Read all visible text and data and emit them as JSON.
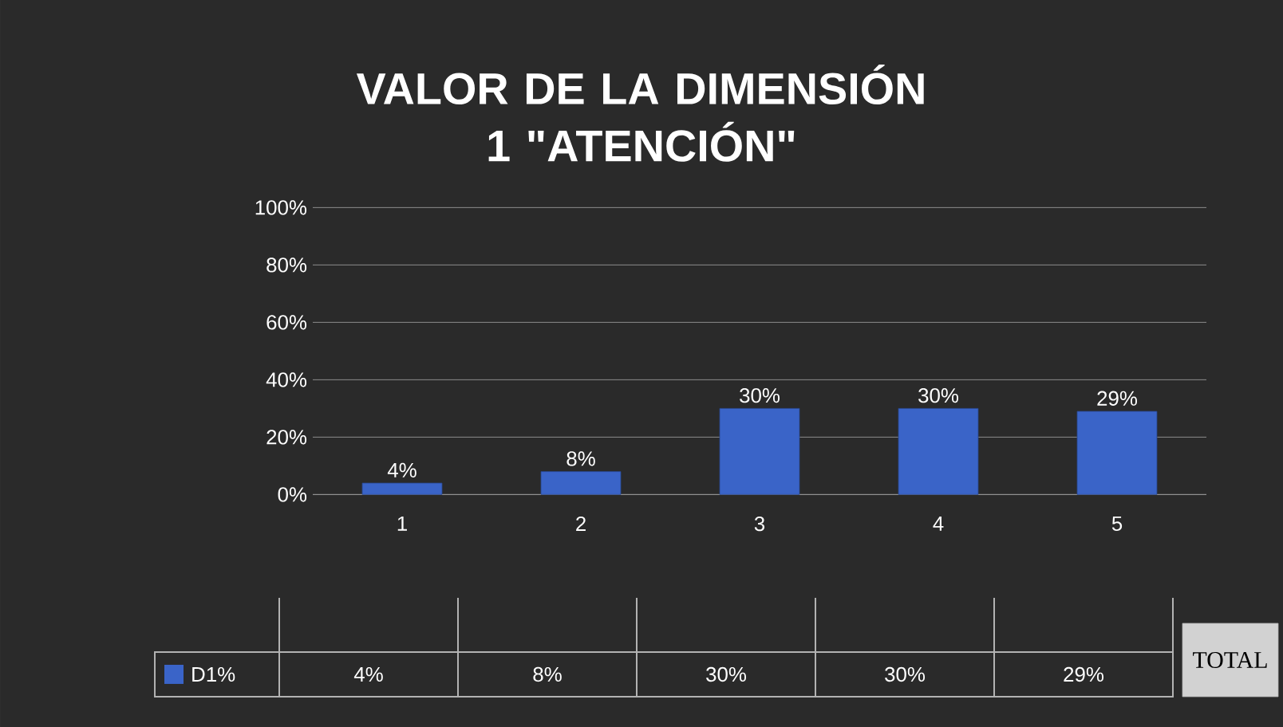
{
  "chart_data": {
    "type": "bar",
    "title": "VALOR DE LA DIMENSIÓN 1 \"ATENCIÓN\"",
    "categories": [
      "1",
      "2",
      "3",
      "4",
      "5"
    ],
    "series": [
      {
        "name": "D1%",
        "color": "#3a64c8",
        "values": [
          4,
          8,
          30,
          30,
          29
        ],
        "value_labels": [
          "4%",
          "8%",
          "30%",
          "30%",
          "29%"
        ]
      }
    ],
    "ylim": [
      0,
      100
    ],
    "yticks": [
      {
        "value": 0,
        "label": "0%"
      },
      {
        "value": 20,
        "label": "20%"
      },
      {
        "value": 40,
        "label": "40%"
      },
      {
        "value": 60,
        "label": "60%"
      },
      {
        "value": 80,
        "label": "80%"
      },
      {
        "value": 100,
        "label": "100%"
      }
    ],
    "grid": "y",
    "legend": "bottom",
    "annotations": [
      "TOTAL"
    ]
  }
}
